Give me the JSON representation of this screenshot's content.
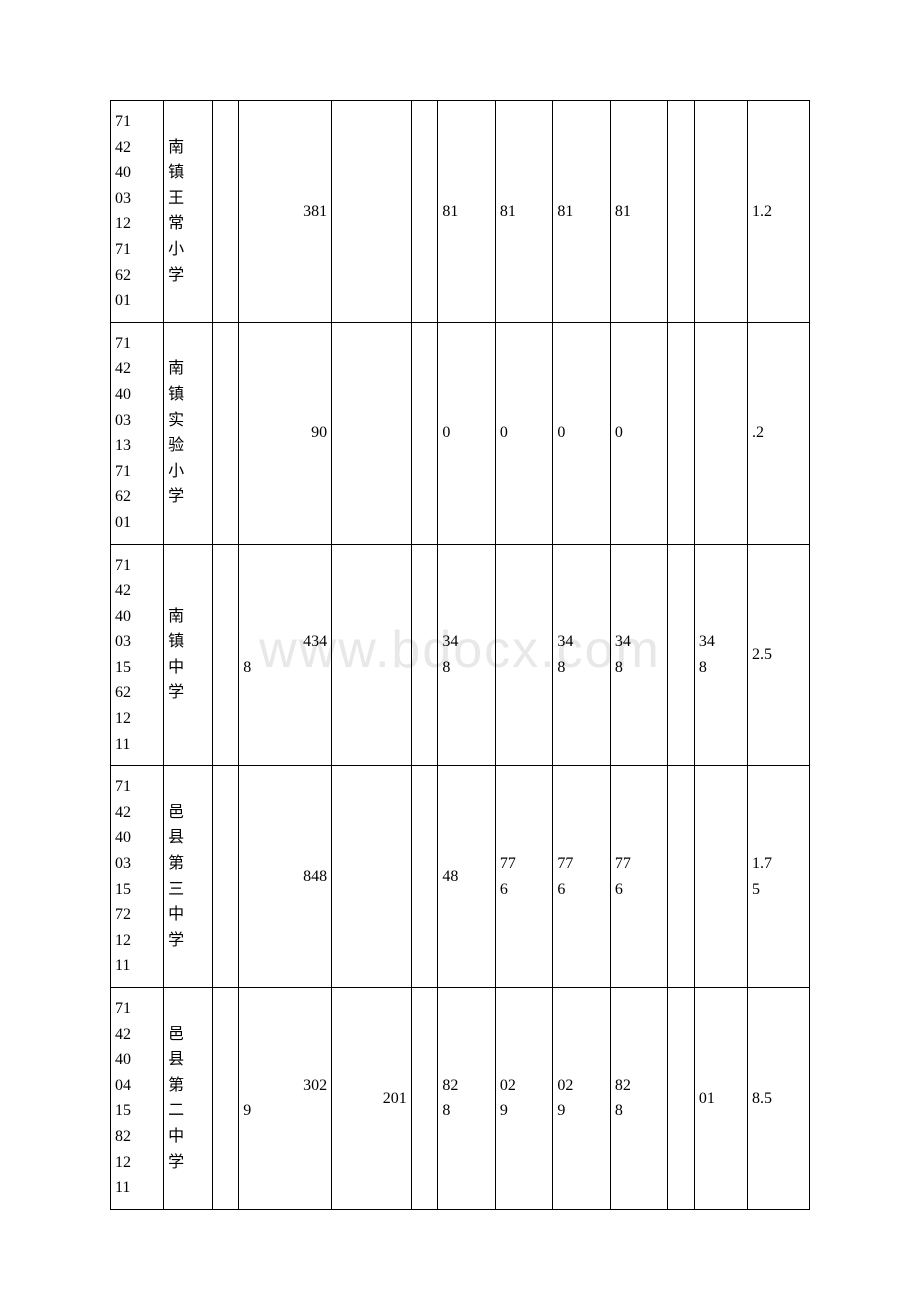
{
  "watermark": "www.bdocx.com",
  "table": {
    "columns": [
      {
        "key": "id",
        "class": "col-id"
      },
      {
        "key": "name",
        "class": "col-name"
      },
      {
        "key": "c3",
        "class": "col-3"
      },
      {
        "key": "num1",
        "class": "col-num1"
      },
      {
        "key": "num2",
        "class": "col-num2"
      },
      {
        "key": "c6",
        "class": "col-6"
      },
      {
        "key": "c7",
        "class": "col-c1"
      },
      {
        "key": "c8",
        "class": "col-c2"
      },
      {
        "key": "c9",
        "class": "col-c3"
      },
      {
        "key": "c10",
        "class": "col-c4"
      },
      {
        "key": "c11",
        "class": "col-11"
      },
      {
        "key": "c12",
        "class": "col-c5"
      },
      {
        "key": "last",
        "class": "col-last"
      }
    ],
    "rows": [
      {
        "id": "7142400312716201",
        "name": "南镇王常小学",
        "c3": "",
        "num1": "381",
        "num2": "",
        "c6": "",
        "c7": "81",
        "c8": "81",
        "c9": "81",
        "c10": "81",
        "c11": "",
        "c12": "",
        "last": "1.2"
      },
      {
        "id": "7142400313716201",
        "name": "南镇实验小学",
        "c3": "",
        "num1": "90",
        "num2": "",
        "c6": "",
        "c7": "0",
        "c8": "0",
        "c9": "0",
        "c10": "0",
        "c11": "",
        "c12": "",
        "last": ".2"
      },
      {
        "id": "71424003156212​11",
        "name": "南镇中学",
        "c3": "",
        "num1": "4348",
        "num2": "",
        "c6": "",
        "c7": "348",
        "c8": "",
        "c9": "348",
        "c10": "348",
        "c11": "",
        "c12": "348",
        "last": "2.5"
      },
      {
        "id": "71424003157212​11",
        "name": "邑县第三中学",
        "c3": "",
        "num1": "848",
        "num2": "",
        "c6": "",
        "c7": "48",
        "c8": "776",
        "c9": "776",
        "c10": "776",
        "c11": "",
        "c12": "",
        "last": "1.75"
      },
      {
        "id": "71424004158212​11",
        "name": "邑县第二中学",
        "c3": "",
        "num1": "3029",
        "num2": "201",
        "c6": "",
        "c7": "828",
        "c8": "029",
        "c9": "029",
        "c10": "828",
        "c11": "",
        "c12": "01",
        "last": "8.5"
      }
    ]
  }
}
